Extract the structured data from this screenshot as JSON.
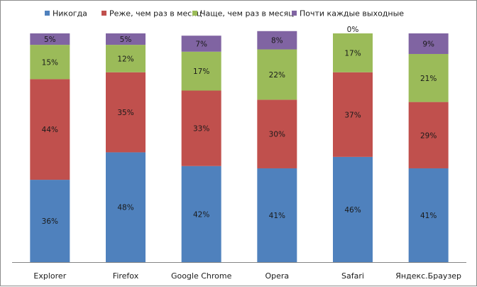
{
  "chart_data": {
    "type": "bar",
    "stacked": true,
    "percent": true,
    "title": "",
    "xlabel": "",
    "ylabel": "",
    "ylim": [
      0,
      100
    ],
    "grid": false,
    "legend_position": "top",
    "categories": [
      "Explorer",
      "Firefox",
      "Google Chrome",
      "Opera",
      "Safari",
      "Яндекс.Браузер"
    ],
    "series": [
      {
        "name": "Никогда",
        "color": "#4f81bd",
        "values": [
          36,
          48,
          42,
          41,
          46,
          41
        ],
        "labels": [
          "36%",
          "48%",
          "42%",
          "41%",
          "46%",
          "41%"
        ]
      },
      {
        "name": "Реже, чем раз в месяц",
        "color": "#c0504d",
        "values": [
          44,
          35,
          33,
          30,
          37,
          29
        ],
        "labels": [
          "44%",
          "35%",
          "33%",
          "30%",
          "37%",
          "29%"
        ]
      },
      {
        "name": "Чаще, чем раз в месяц",
        "color": "#9bbb59",
        "values": [
          15,
          12,
          17,
          22,
          17,
          21
        ],
        "labels": [
          "15%",
          "12%",
          "17%",
          "22%",
          "17%",
          "21%"
        ]
      },
      {
        "name": "Почти каждые выходные",
        "color": "#8064a2",
        "values": [
          5,
          5,
          7,
          8,
          0,
          9
        ],
        "labels": [
          "5%",
          "5%",
          "7%",
          "8%",
          "0%",
          "9%"
        ]
      }
    ]
  }
}
